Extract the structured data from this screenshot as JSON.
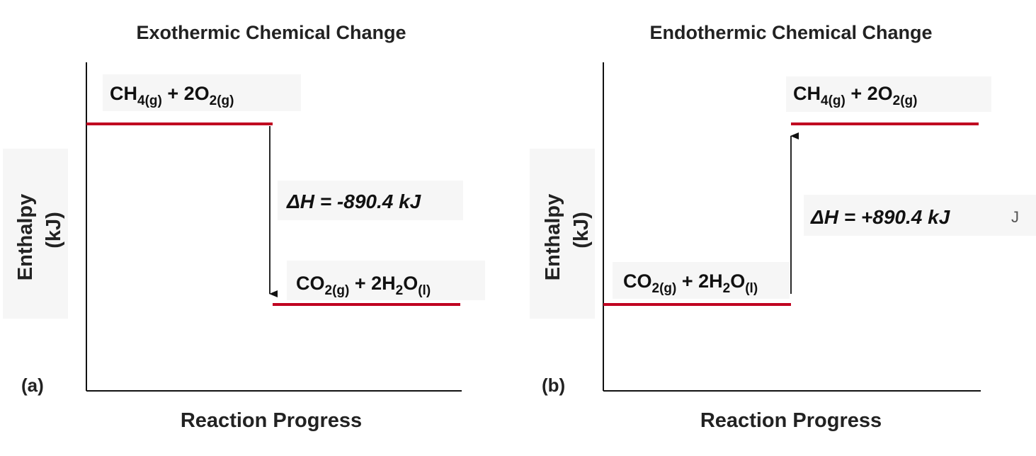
{
  "panels": [
    {
      "title": "Exothermic Chemical Change",
      "ylabel_line1": "Enthalpy",
      "ylabel_line2": "(kJ)",
      "xlabel": "Reaction Progress",
      "tag": "(a)",
      "upper_level": {
        "parts": [
          {
            "text": "CH"
          },
          {
            "text": "4(g)",
            "sub": true
          },
          {
            "text": " + 2O"
          },
          {
            "text": "2(g)",
            "sub": true
          }
        ]
      },
      "lower_level": {
        "parts": [
          {
            "text": "CO"
          },
          {
            "text": "2(g)",
            "sub": true
          },
          {
            "text": " + 2H"
          },
          {
            "text": "2",
            "sub": true
          },
          {
            "text": "O"
          },
          {
            "text": "(l)",
            "sub": true
          }
        ]
      },
      "delta_h": "ΔH = -890.4 kJ",
      "arrow_direction": "down"
    },
    {
      "title": "Endothermic Chemical Change",
      "ylabel_line1": "Enthalpy",
      "ylabel_line2": "(kJ)",
      "xlabel": "Reaction Progress",
      "tag": "(b)",
      "upper_level": {
        "parts": [
          {
            "text": "CH"
          },
          {
            "text": "4(g)",
            "sub": true
          },
          {
            "text": " + 2O"
          },
          {
            "text": "2(g)",
            "sub": true
          }
        ]
      },
      "lower_level": {
        "parts": [
          {
            "text": "CO"
          },
          {
            "text": "2(g)",
            "sub": true
          },
          {
            "text": " + 2H"
          },
          {
            "text": "2",
            "sub": true
          },
          {
            "text": "O"
          },
          {
            "text": "(l)",
            "sub": true
          }
        ]
      },
      "delta_h": "ΔH = +890.4 kJ",
      "arrow_direction": "up"
    }
  ],
  "stray_mark": "J",
  "colors": {
    "level_line": "#c00020",
    "axis": "#111111",
    "label_background": "#f6f6f6"
  }
}
